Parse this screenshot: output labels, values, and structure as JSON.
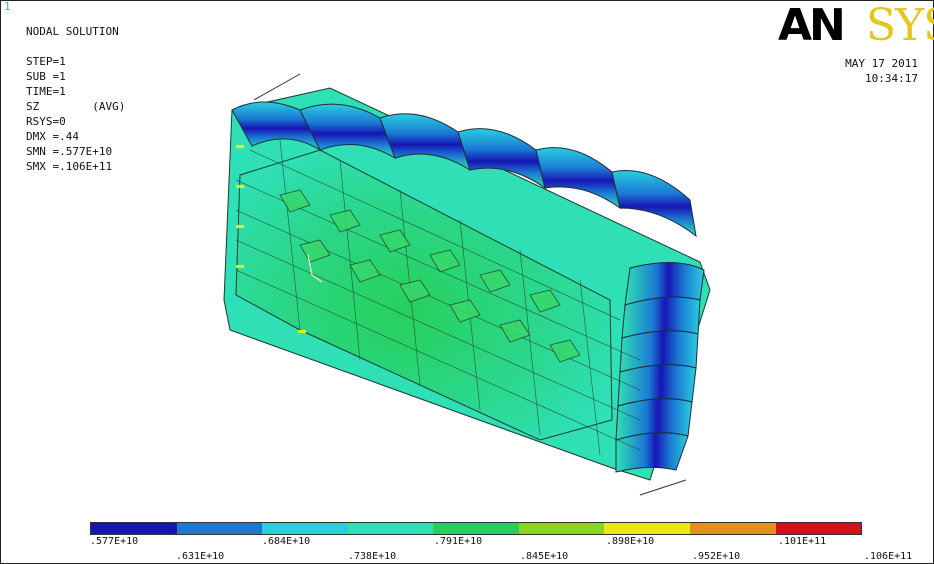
{
  "window_number": "1",
  "plot_info": {
    "lines": [
      "NODAL SOLUTION",
      "",
      "STEP=1",
      "SUB =1",
      "TIME=1",
      "SZ        (AVG)",
      "RSYS=0",
      "DMX =.44",
      "SMN =.577E+10",
      "SMX =.106E+11"
    ]
  },
  "brand": {
    "bold": "AN",
    "light": "SYS"
  },
  "timestamp": {
    "date": "MAY 17 2011",
    "time": "10:34:17"
  },
  "legend": {
    "colors": [
      "#1616b4",
      "#1b79d4",
      "#29cfe0",
      "#2fdfb5",
      "#27d05a",
      "#8ad61e",
      "#eaea1a",
      "#e6901c",
      "#d41414"
    ],
    "labels": [
      ".577E+10",
      ".631E+10",
      ".684E+10",
      ".738E+10",
      ".791E+10",
      ".845E+10",
      ".898E+10",
      ".952E+10",
      ".101E+11",
      ".106E+11"
    ]
  }
}
